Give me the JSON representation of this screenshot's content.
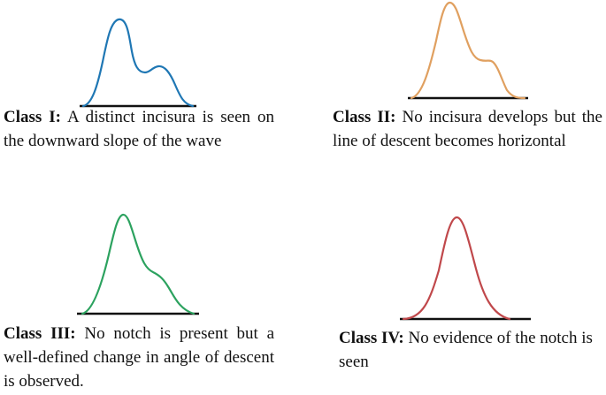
{
  "classes": [
    {
      "label": "Class I:",
      "text": "A distinct incisura is seen on the downward slope of the wave",
      "color": "#1F77B4",
      "waveform": "distinct-incisura"
    },
    {
      "label": "Class II:",
      "text": "No incisura develops but the line of descent becomes horizontal",
      "color": "#E0A060",
      "waveform": "horizontal-descent"
    },
    {
      "label": "Class III:",
      "text": "No notch is present but a well-defined change in angle of descent is observed.",
      "color": "#2CA25F",
      "waveform": "angle-change"
    },
    {
      "label": "Class IV:",
      "text": "No evidence of the notch is seen",
      "color": "#C0484B",
      "waveform": "no-notch"
    }
  ]
}
